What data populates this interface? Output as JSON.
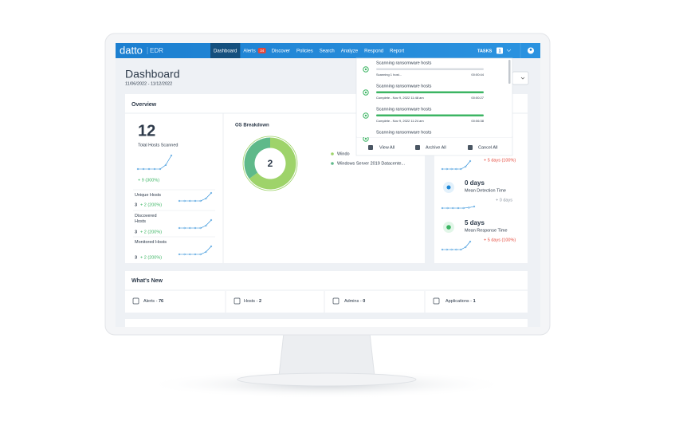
{
  "nav": {
    "logo": "datto",
    "product": "EDR",
    "items": [
      {
        "label": "Dashboard"
      },
      {
        "label": "Alerts",
        "badge": "34"
      },
      {
        "label": "Discover"
      },
      {
        "label": "Policies"
      },
      {
        "label": "Search"
      },
      {
        "label": "Analyze"
      },
      {
        "label": "Respond"
      },
      {
        "label": "Report"
      }
    ],
    "tasks_label": "TASKS",
    "tasks_count": "1"
  },
  "header": {
    "title": "Dashboard",
    "date_range": "11/06/2022 - 11/12/2022"
  },
  "overview": {
    "title": "Overview",
    "total_hosts": 12,
    "total_label": "Total Hosts Scanned",
    "total_change": "+ 9 (300%)",
    "rows": [
      {
        "label": "Unique Hosts",
        "value": 3,
        "change": "+ 2 (200%)"
      },
      {
        "label": "Discovered Hosts",
        "value": 3,
        "change": "+ 2 (200%)"
      },
      {
        "label": "Monitored Hosts",
        "value": 3,
        "change": "+ 2 (200%)"
      }
    ],
    "os_breakdown": {
      "title": "OS Breakdown",
      "total": 2,
      "series": [
        {
          "name": "Windo",
          "color": "#9ed36a",
          "value": 65
        },
        {
          "name": "Windows Server 2019 Datacente...",
          "color": "#5fb98a",
          "value": 35
        }
      ]
    },
    "metrics": {
      "top_change": "+ 5 days (100%)",
      "detection": {
        "value": "0 days",
        "label": "Mean Detection Time",
        "change": "+ 0 days"
      },
      "response": {
        "value": "5 days",
        "label": "Mean Response Time",
        "change": "+ 5 days (100%)"
      }
    }
  },
  "tasks_panel": {
    "items": [
      {
        "title": "Scanning ransomware hosts",
        "status": "Scanning 1 host...",
        "time": "00:00:44",
        "progress": 0
      },
      {
        "title": "Scanning ransomware hosts",
        "status": "Complete - Nov 9, 2022 11:48 am",
        "time": "00:00:27",
        "progress": 100
      },
      {
        "title": "Scanning ransomware hosts",
        "status": "Complete - Nov 9, 2022 11:24 am",
        "time": "00:06:38",
        "progress": 100
      },
      {
        "title": "Scanning ransomware hosts"
      }
    ],
    "actions": [
      "View All",
      "Archive All",
      "Cancel All"
    ]
  },
  "whats_new": {
    "title": "What's New",
    "items": [
      {
        "label": "Alerts -",
        "count": "76"
      },
      {
        "label": "Hosts -",
        "count": "2"
      },
      {
        "label": "Admins -",
        "count": "0"
      },
      {
        "label": "Applications -",
        "count": "1"
      }
    ]
  }
}
